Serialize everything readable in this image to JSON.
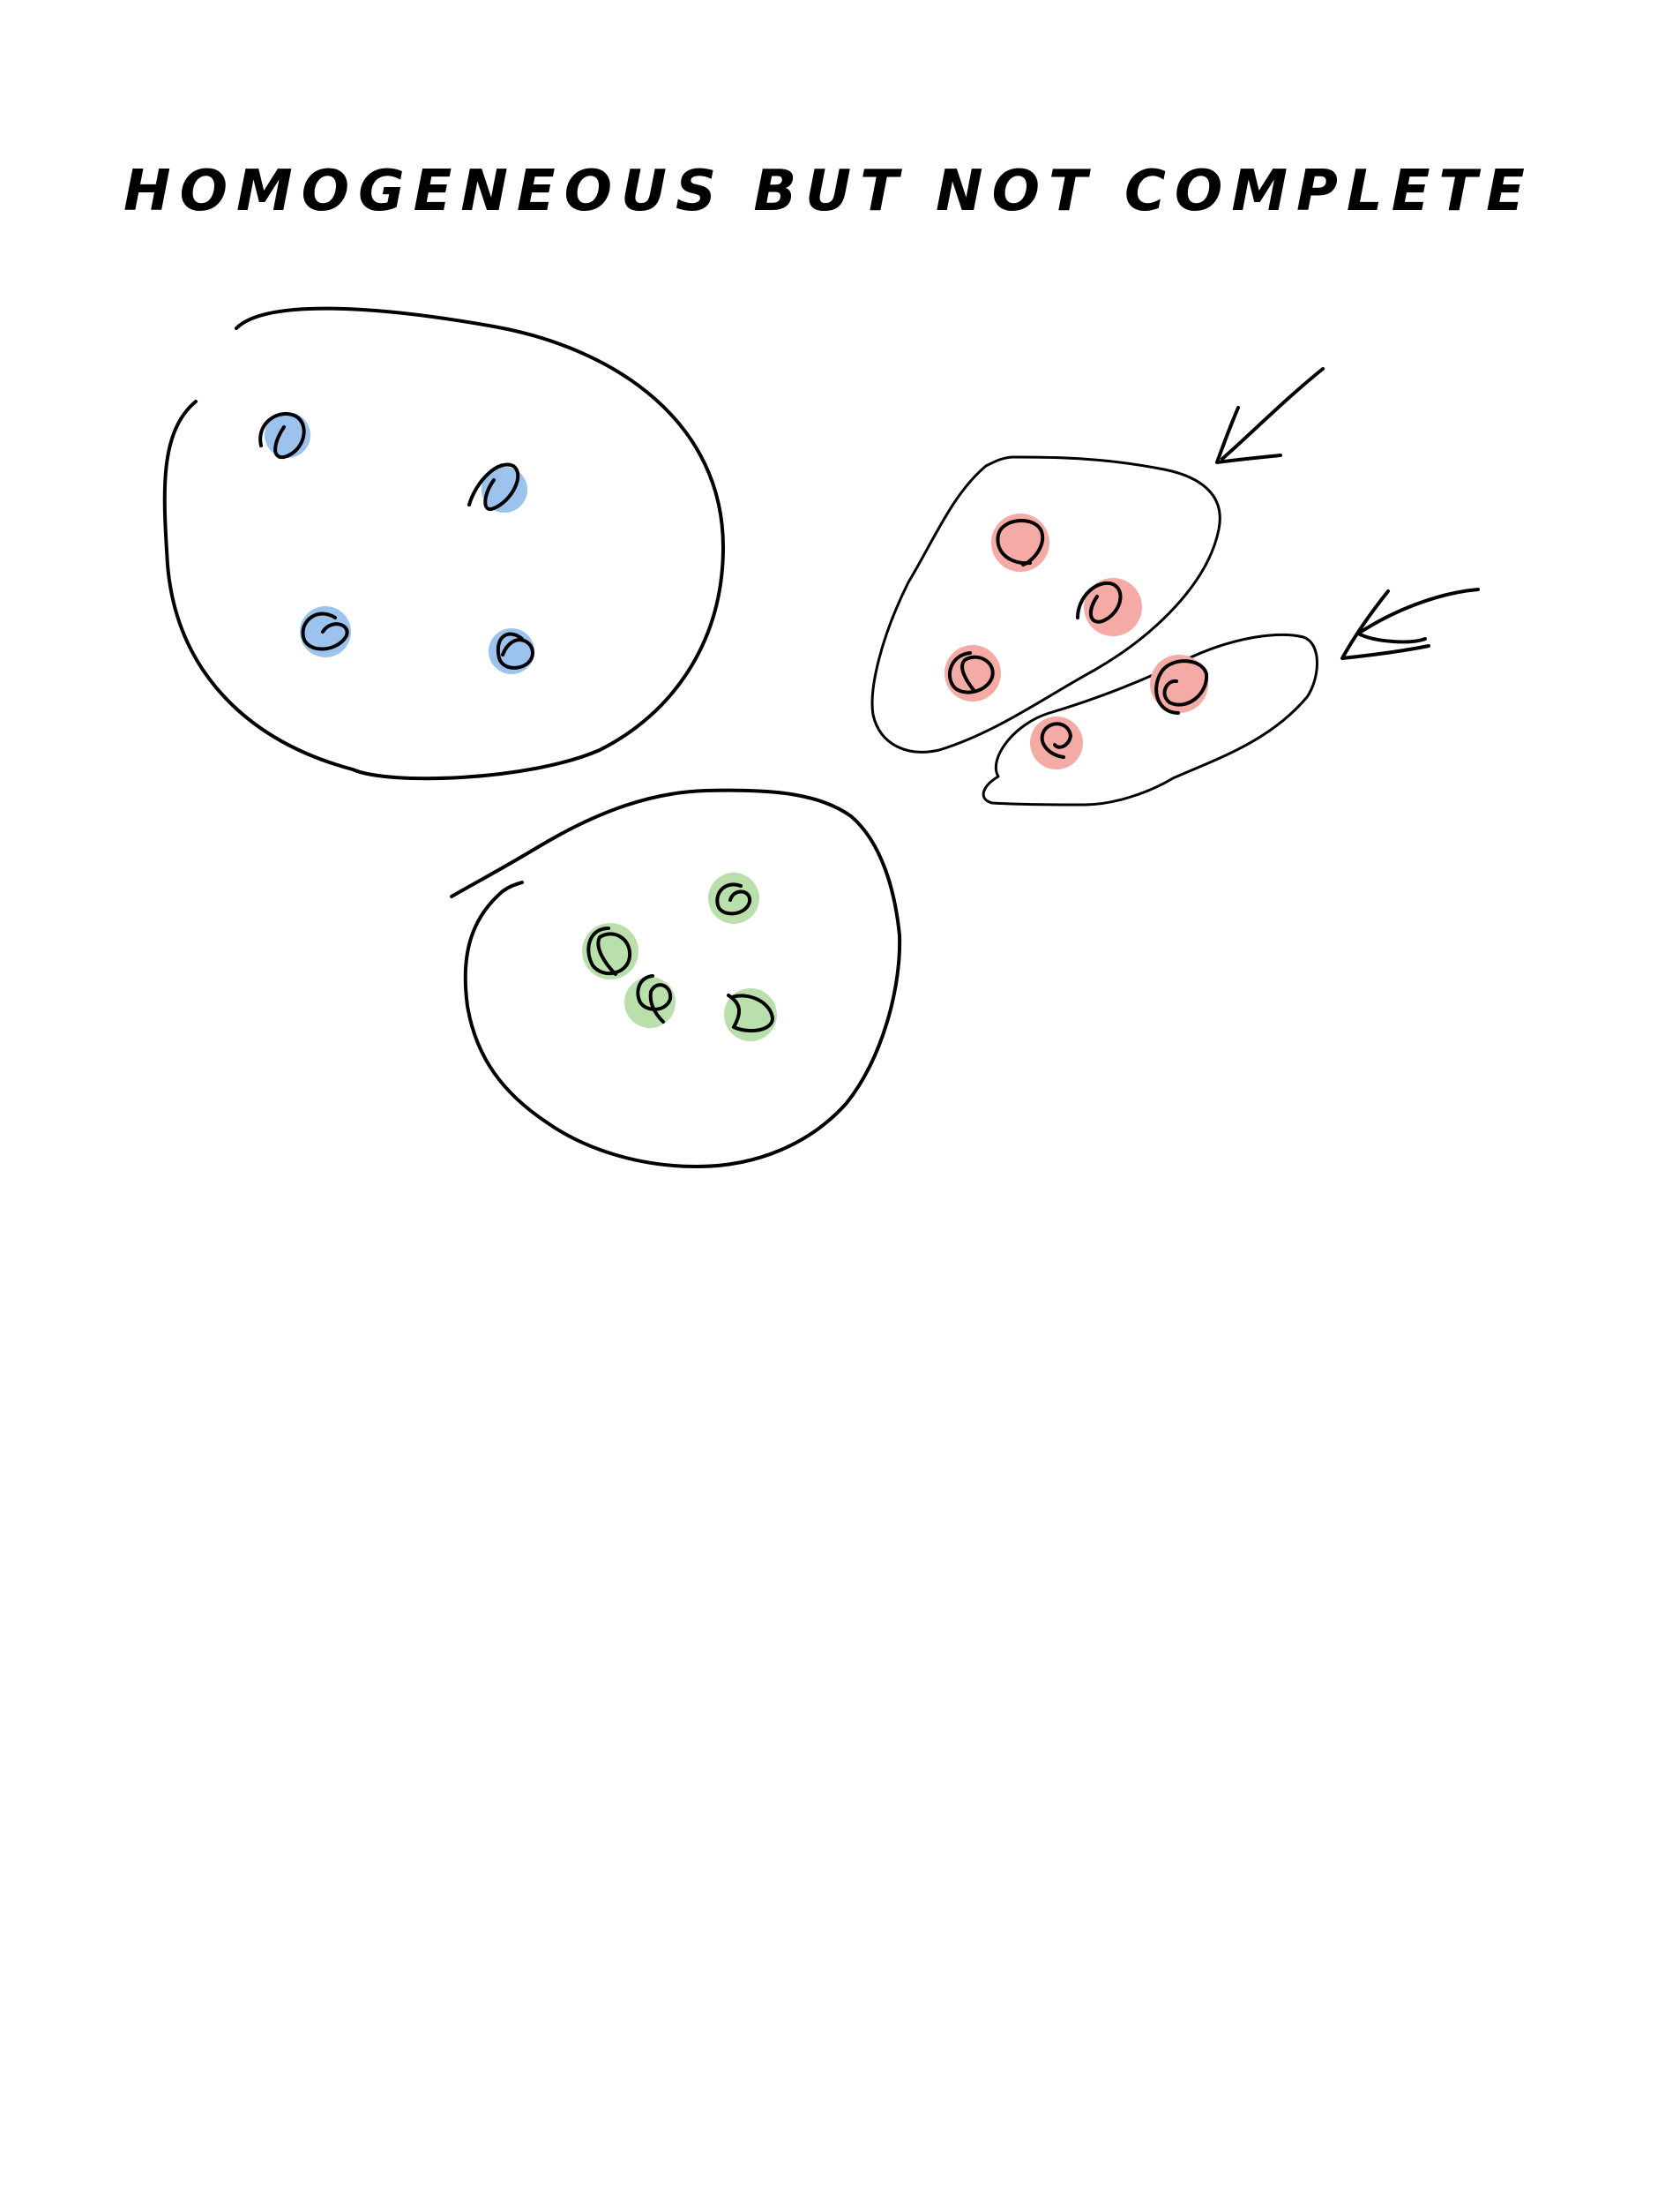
{
  "title": "HOMOGENEOUS BUT NOT COMPLETE",
  "colors": {
    "ink": "#000000",
    "blue": "#9cc2ee",
    "red": "#f4aba6",
    "green": "#b9dfab",
    "background": "#ffffff"
  },
  "clusters": [
    {
      "name": "blue-cluster",
      "color": "blue",
      "member_count": 4
    },
    {
      "name": "red-cluster-upper",
      "color": "red",
      "member_count": 3
    },
    {
      "name": "red-cluster-lower",
      "color": "red",
      "member_count": 2
    },
    {
      "name": "green-cluster",
      "color": "green",
      "member_count": 4
    }
  ],
  "arrows": [
    {
      "name": "arrow-to-red-upper",
      "icon": "arrow-down-left-icon"
    },
    {
      "name": "arrow-to-red-lower",
      "icon": "arrow-left-icon"
    }
  ]
}
